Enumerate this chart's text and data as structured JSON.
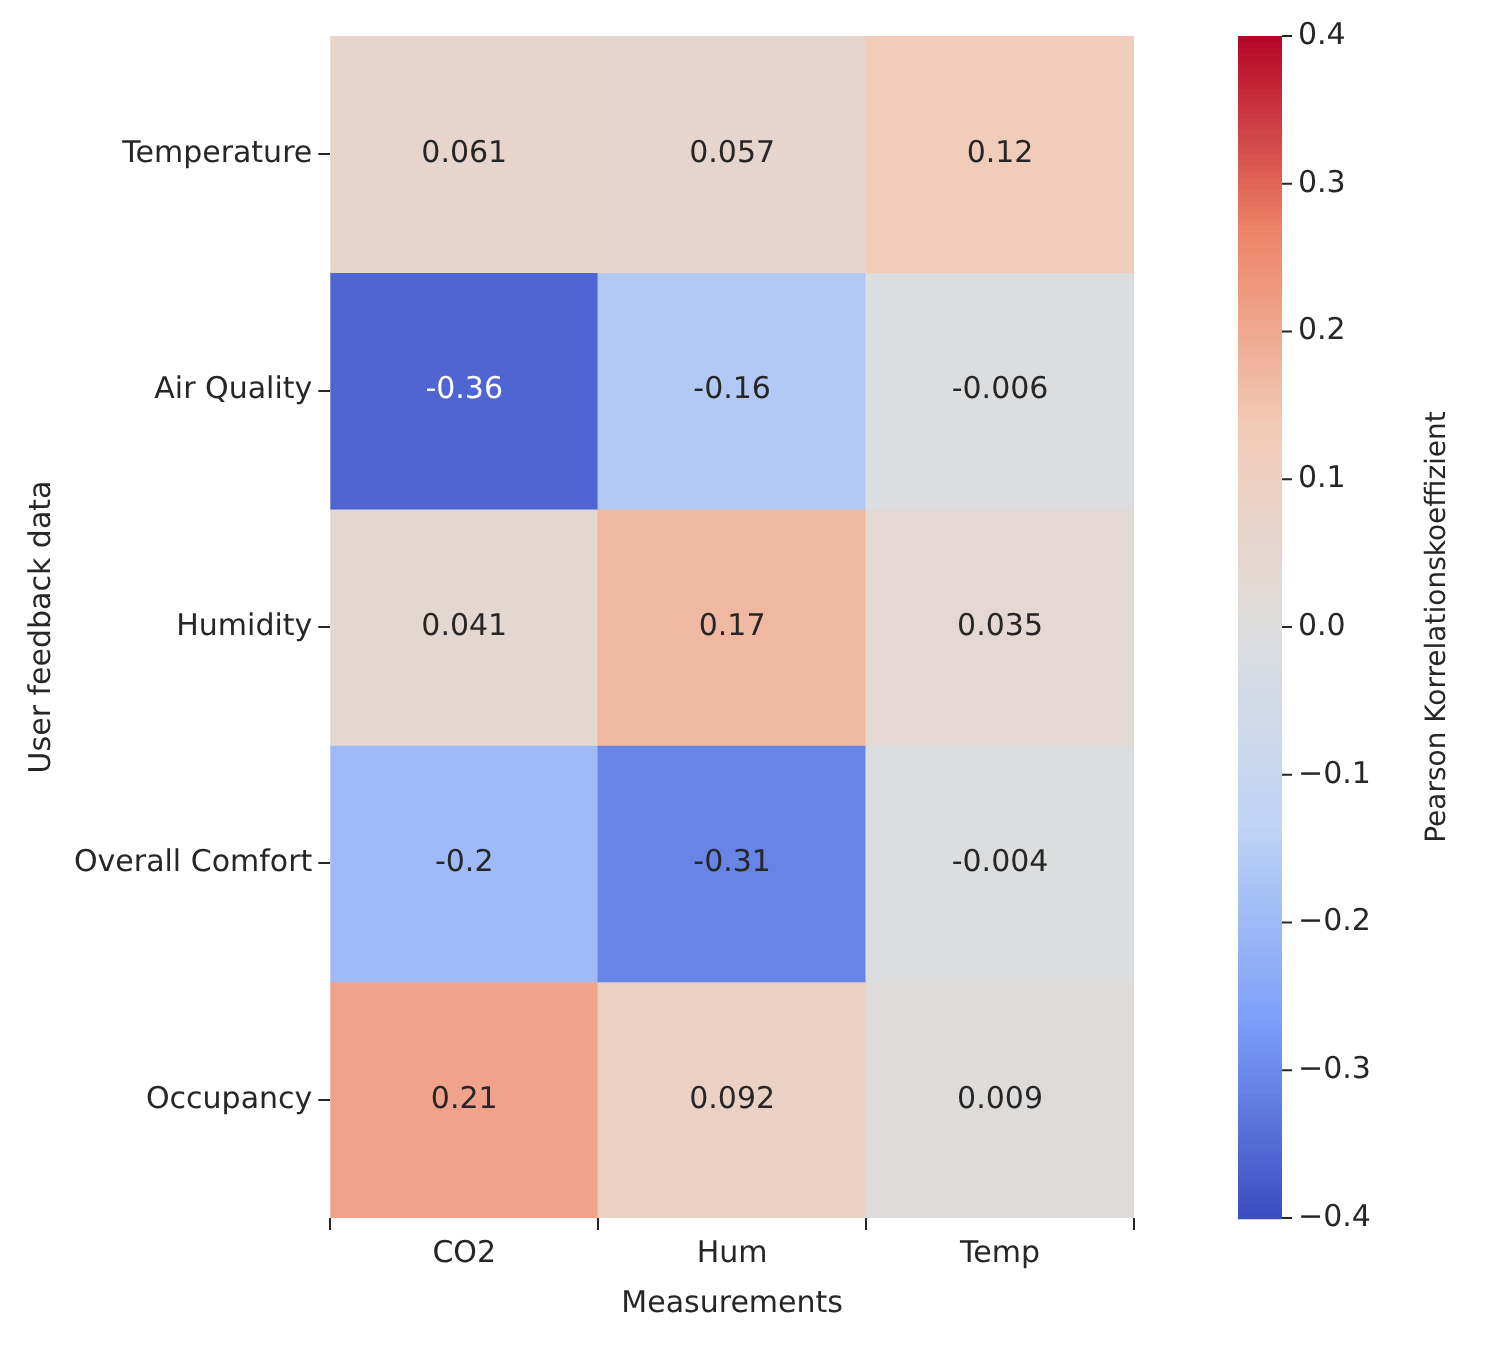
{
  "chart_data": {
    "type": "heatmap",
    "xlabel": "Measurements",
    "ylabel": "User feedback data",
    "clabel": "Pearson Korrelationskoeffizient",
    "categories": [
      "CO2",
      "Hum",
      "Temp"
    ],
    "y_categories": [
      "Temperature",
      "Air Quality",
      "Humidity",
      "Overall Comfort",
      "Occupancy"
    ],
    "cells": [
      [
        0.061,
        0.057,
        0.12
      ],
      [
        -0.36,
        -0.16,
        -0.006
      ],
      [
        0.041,
        0.17,
        0.035
      ],
      [
        -0.2,
        -0.31,
        -0.004
      ],
      [
        0.21,
        0.092,
        0.009
      ]
    ],
    "data_labels": true,
    "clim": [
      -0.4,
      0.4
    ],
    "cticks": [
      {
        "value": -0.4,
        "label": "−0.4"
      },
      {
        "value": -0.3,
        "label": "−0.3"
      },
      {
        "value": -0.2,
        "label": "−0.2"
      },
      {
        "value": -0.1,
        "label": "−0.1"
      },
      {
        "value": 0,
        "label": "0.0"
      },
      {
        "value": 0.1,
        "label": "0.1"
      },
      {
        "value": 0.2,
        "label": "0.2"
      },
      {
        "value": 0.3,
        "label": "0.3"
      },
      {
        "value": 0.4,
        "label": "0.4"
      }
    ]
  }
}
